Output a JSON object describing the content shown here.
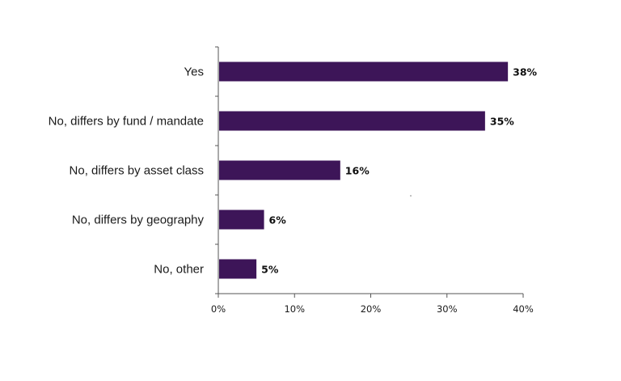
{
  "chart_data": {
    "type": "bar",
    "orientation": "horizontal",
    "categories": [
      "Yes",
      "No, differs by fund / mandate",
      "No, differs by asset class",
      "No, differs by geography",
      "No, other"
    ],
    "values": [
      38,
      35,
      16,
      6,
      5
    ],
    "value_labels": [
      "38%",
      "35%",
      "16%",
      "6%",
      "5%"
    ],
    "xlim": [
      0,
      40
    ],
    "x_ticks": [
      0,
      10,
      20,
      30,
      40
    ],
    "x_tick_labels": [
      "0%",
      "10%",
      "20%",
      "30%",
      "40%"
    ],
    "title": "",
    "xlabel": "",
    "ylabel": "",
    "grid": false,
    "legend": "none",
    "bar_color": "#3d1558",
    "axis_color": "#555555"
  }
}
